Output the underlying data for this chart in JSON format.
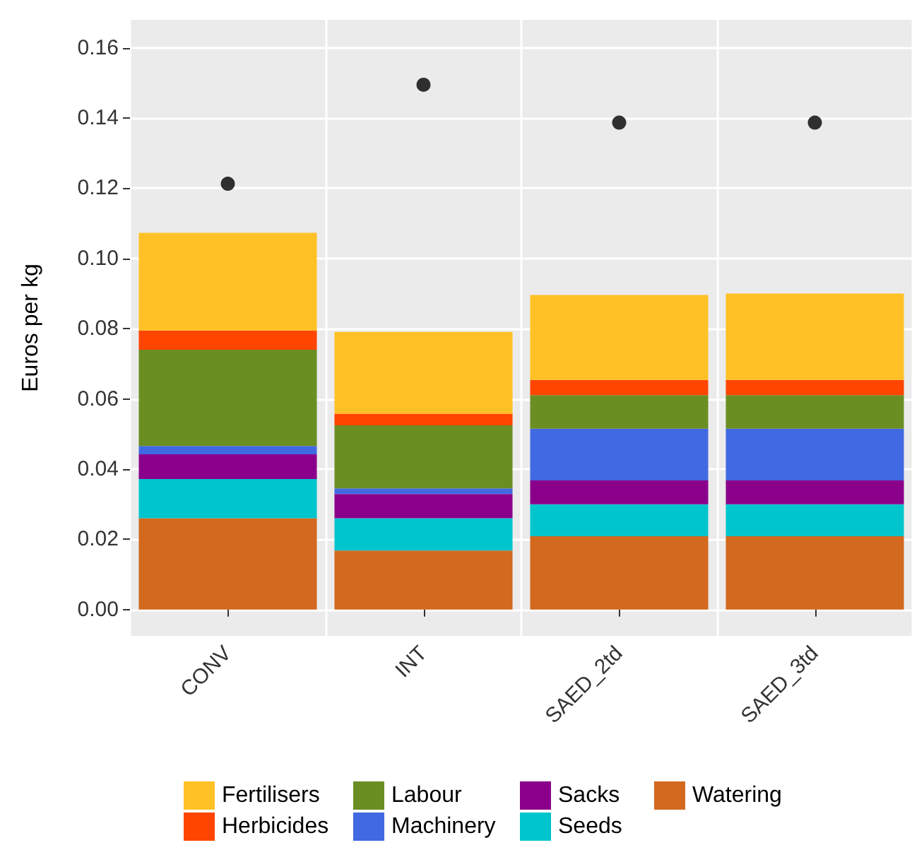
{
  "chart_data": {
    "type": "bar",
    "stacked": true,
    "ylabel": "Euros per kg",
    "categories": [
      "CONV",
      "INT",
      "SAED_2td",
      "SAED_3td"
    ],
    "series": [
      {
        "name": "Watering",
        "color": "#d2691e",
        "values": [
          0.026,
          0.0168,
          0.0209,
          0.0209
        ]
      },
      {
        "name": "Seeds",
        "color": "#00c5cd",
        "values": [
          0.0112,
          0.0092,
          0.0091,
          0.0091
        ]
      },
      {
        "name": "Sacks",
        "color": "#8b008b",
        "values": [
          0.007,
          0.0069,
          0.0068,
          0.0068
        ]
      },
      {
        "name": "Machinery",
        "color": "#4169e1",
        "values": [
          0.0024,
          0.0016,
          0.0147,
          0.0147
        ]
      },
      {
        "name": "Labour",
        "color": "#6b8e23",
        "values": [
          0.0274,
          0.018,
          0.0096,
          0.0096
        ]
      },
      {
        "name": "Herbicides",
        "color": "#ff4500",
        "values": [
          0.0055,
          0.0033,
          0.0043,
          0.0043
        ]
      },
      {
        "name": "Fertilisers",
        "color": "#ffc125",
        "values": [
          0.0278,
          0.0233,
          0.0242,
          0.0246
        ]
      },
      {
        "type": "scatter",
        "color": "#000000",
        "x": [
          "CONV",
          "INT",
          "SAED_2td",
          "SAED_3td"
        ],
        "values": [
          0.1213,
          0.1495,
          0.1387,
          0.1387
        ]
      }
    ],
    "ylim": [
      -0.0075,
      0.168
    ],
    "yticks": [
      {
        "value": 0,
        "label": "0.00"
      },
      0.02,
      0.04,
      0.06,
      0.08,
      {
        "value": 0.1,
        "label": "0.10"
      },
      0.12,
      0.14,
      0.16
    ],
    "grid": true,
    "legend": "bottom",
    "marker": "circle"
  }
}
